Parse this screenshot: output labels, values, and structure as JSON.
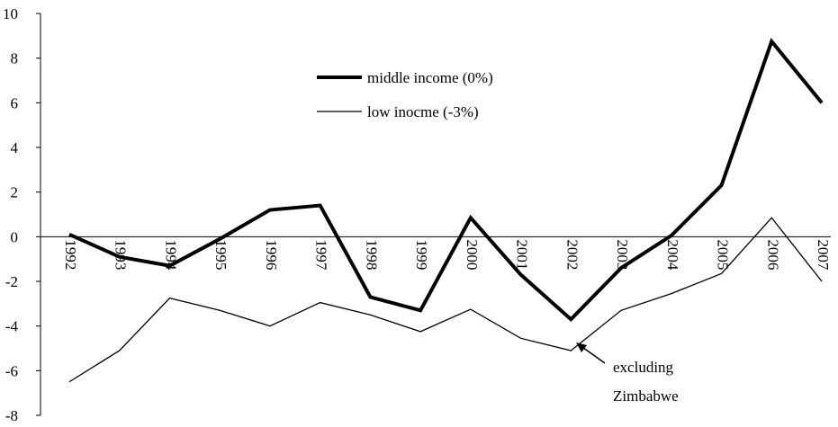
{
  "chart_data": {
    "type": "line",
    "categories": [
      "1992",
      "1993",
      "1994",
      "1995",
      "1996",
      "1997",
      "1998",
      "1999",
      "2000",
      "2001",
      "2002",
      "2003",
      "2004",
      "2005",
      "2006",
      "2007"
    ],
    "series": [
      {
        "name": "middle income (0%)",
        "color": "#000000",
        "values": [
          0.1,
          -0.9,
          -1.3,
          -0.1,
          1.2,
          1.4,
          -2.7,
          -3.3,
          0.85,
          -1.7,
          -3.7,
          -1.4,
          0.05,
          2.3,
          8.75,
          6.0
        ]
      },
      {
        "name": "low inocme (-3%)",
        "color": "#000000",
        "values": [
          -6.5,
          -5.1,
          -2.75,
          -3.3,
          -4.0,
          -2.95,
          -3.5,
          -4.25,
          -3.25,
          -4.55,
          -5.1,
          -3.3,
          -2.55,
          -1.65,
          0.85,
          -2.0
        ]
      }
    ],
    "ylim": [
      -8,
      10
    ],
    "yticks": [
      -8,
      -6,
      -4,
      -2,
      0,
      2,
      4,
      6,
      8,
      10
    ],
    "annotations": [
      "excluding",
      "Zimbabwe"
    ]
  }
}
